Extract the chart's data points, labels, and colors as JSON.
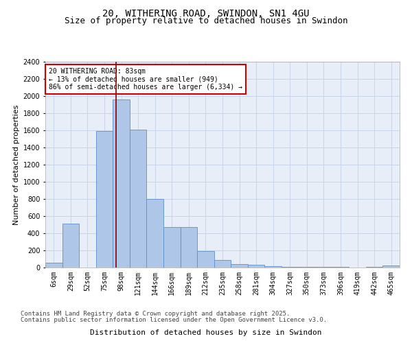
{
  "title1": "20, WITHERING ROAD, SWINDON, SN1 4GU",
  "title2": "Size of property relative to detached houses in Swindon",
  "xlabel": "Distribution of detached houses by size in Swindon",
  "ylabel": "Number of detached properties",
  "categories": [
    "6sqm",
    "29sqm",
    "52sqm",
    "75sqm",
    "98sqm",
    "121sqm",
    "144sqm",
    "166sqm",
    "189sqm",
    "212sqm",
    "235sqm",
    "258sqm",
    "281sqm",
    "304sqm",
    "327sqm",
    "350sqm",
    "373sqm",
    "396sqm",
    "419sqm",
    "442sqm",
    "465sqm"
  ],
  "values": [
    55,
    510,
    0,
    1590,
    1960,
    1610,
    800,
    475,
    475,
    195,
    90,
    40,
    30,
    20,
    5,
    5,
    5,
    5,
    0,
    5,
    25
  ],
  "bar_color": "#aec6e8",
  "bar_edge_color": "#5b8fc9",
  "grid_color": "#c8d4e8",
  "background_color": "#e8eef8",
  "vline_color": "#8b0000",
  "annotation_title": "20 WITHERING ROAD: 83sqm",
  "annotation_line1": "← 13% of detached houses are smaller (949)",
  "annotation_line2": "86% of semi-detached houses are larger (6,334) →",
  "annotation_box_color": "white",
  "annotation_border_color": "#cc0000",
  "ylim": [
    0,
    2400
  ],
  "yticks": [
    0,
    200,
    400,
    600,
    800,
    1000,
    1200,
    1400,
    1600,
    1800,
    2000,
    2200,
    2400
  ],
  "footer1": "Contains HM Land Registry data © Crown copyright and database right 2025.",
  "footer2": "Contains public sector information licensed under the Open Government Licence v3.0.",
  "title_fontsize": 10,
  "subtitle_fontsize": 9,
  "axis_label_fontsize": 8,
  "tick_fontsize": 7,
  "annot_fontsize": 7,
  "footer_fontsize": 6.5,
  "vline_pos": 3.7
}
